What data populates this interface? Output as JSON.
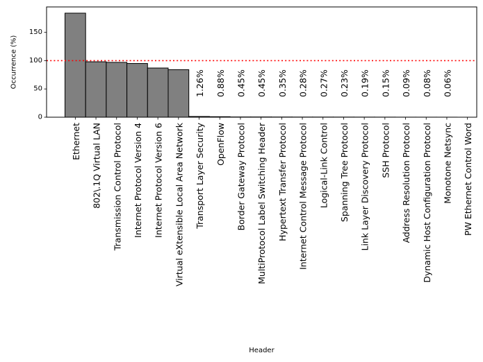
{
  "chart_data": {
    "type": "bar",
    "title": "",
    "xlabel": "Header",
    "ylabel": "Occurrence (%)",
    "ylim": [
      0,
      195
    ],
    "yticks": [
      0,
      50,
      100,
      150
    ],
    "reference_line": {
      "y": 100,
      "color": "#ff0000",
      "style": "dotted"
    },
    "bar_color": "#808080",
    "bar_edge_color": "#000000",
    "grid": false,
    "categories": [
      "Ethernet",
      "802\\.1Q Virtual LAN",
      "Transmission Control Protocol",
      "Internet Protocol Version 4",
      "Internet Protocol Version 6",
      "Virtual eXtensible Local Area Network",
      "Transport Layer Security",
      "OpenFlow",
      "Border Gateway Protocol",
      "MultiProtocol Label Switching Header",
      "Hypertext Transfer Protocol",
      "Internet Control Message Protocol",
      "Logical-Link Control",
      "Spanning Tree Protocol",
      "Link Layer Discovery Protocol",
      "SSH Protocol",
      "Address Resolution Protocol",
      "Dynamic Host Configuration Protocol",
      "Monotone Netsync",
      "PW Ethernet Control Word"
    ],
    "values": [
      184,
      98,
      97,
      95,
      87,
      84,
      1.26,
      0.88,
      0.45,
      0.45,
      0.35,
      0.28,
      0.27,
      0.23,
      0.19,
      0.15,
      0.09,
      0.08,
      0.06,
      0
    ],
    "bar_labels": [
      "",
      "",
      "",
      "",
      "",
      "",
      "1.26%",
      "0.88%",
      "0.45%",
      "0.45%",
      "0.35%",
      "0.28%",
      "0.27%",
      "0.23%",
      "0.19%",
      "0.15%",
      "0.09%",
      "0.08%",
      "0.06%",
      ""
    ]
  }
}
